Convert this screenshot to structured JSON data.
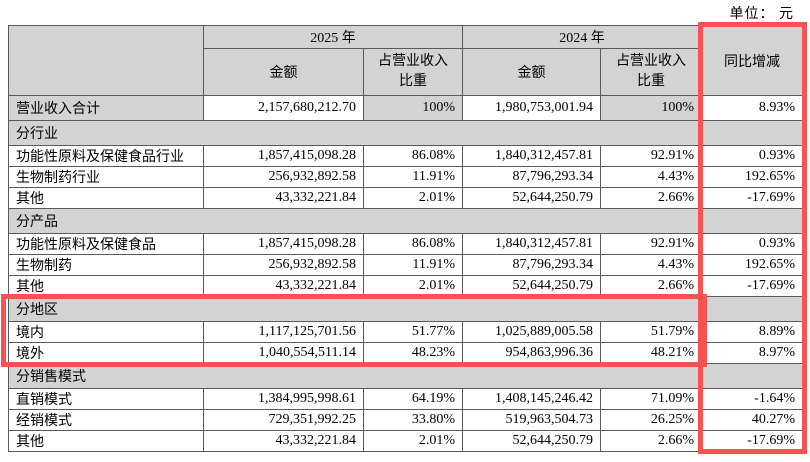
{
  "unit_label": "单位： 元",
  "highlights": {
    "color": "#f85252",
    "column_box_target": "同比增减",
    "region_box_target": "分地区"
  },
  "table": {
    "header": {
      "y2025": "2025 年",
      "y2024": "2024 年",
      "amount_2025": "金额",
      "pct_2025_line1": "占营业收入",
      "pct_2025_line2": "比重",
      "amount_2024": "金额",
      "pct_2024_line1": "占营业收入",
      "pct_2024_line2": "比重",
      "yoy": "同比增减"
    },
    "rows": [
      {
        "label": "营业收入合计",
        "a2025": "2,157,680,212.70",
        "p2025": "100%",
        "a2024": "1,980,753,001.94",
        "p2024": "100%",
        "yoy": "8.93%"
      },
      {
        "label": "分行业"
      },
      {
        "label": "功能性原料及保健食品行业",
        "a2025": "1,857,415,098.28",
        "p2025": "86.08%",
        "a2024": "1,840,312,457.81",
        "p2024": "92.91%",
        "yoy": "0.93%"
      },
      {
        "label": "生物制药行业",
        "a2025": "256,932,892.58",
        "p2025": "11.91%",
        "a2024": "87,796,293.34",
        "p2024": "4.43%",
        "yoy": "192.65%"
      },
      {
        "label": "其他",
        "a2025": "43,332,221.84",
        "p2025": "2.01%",
        "a2024": "52,644,250.79",
        "p2024": "2.66%",
        "yoy": "-17.69%"
      },
      {
        "label": "分产品"
      },
      {
        "label": "功能性原料及保健食品",
        "a2025": "1,857,415,098.28",
        "p2025": "86.08%",
        "a2024": "1,840,312,457.81",
        "p2024": "92.91%",
        "yoy": "0.93%"
      },
      {
        "label": "生物制药",
        "a2025": "256,932,892.58",
        "p2025": "11.91%",
        "a2024": "87,796,293.34",
        "p2024": "4.43%",
        "yoy": "192.65%"
      },
      {
        "label": "其他",
        "a2025": "43,332,221.84",
        "p2025": "2.01%",
        "a2024": "52,644,250.79",
        "p2024": "2.66%",
        "yoy": "-17.69%"
      },
      {
        "label": "分地区"
      },
      {
        "label": "境内",
        "a2025": "1,117,125,701.56",
        "p2025": "51.77%",
        "a2024": "1,025,889,005.58",
        "p2024": "51.79%",
        "yoy": "8.89%"
      },
      {
        "label": "境外",
        "a2025": "1,040,554,511.14",
        "p2025": "48.23%",
        "a2024": "954,863,996.36",
        "p2024": "48.21%",
        "yoy": "8.97%"
      },
      {
        "label": "分销售模式"
      },
      {
        "label": "直销模式",
        "a2025": "1,384,995,998.61",
        "p2025": "64.19%",
        "a2024": "1,408,145,246.42",
        "p2024": "71.09%",
        "yoy": "-1.64%"
      },
      {
        "label": "经销模式",
        "a2025": "729,351,992.25",
        "p2025": "33.80%",
        "a2024": "519,963,504.73",
        "p2024": "26.25%",
        "yoy": "40.27%"
      },
      {
        "label": "其他",
        "a2025": "43,332,221.84",
        "p2025": "2.01%",
        "a2024": "52,644,250.79",
        "p2024": "2.66%",
        "yoy": "-17.69%"
      }
    ]
  }
}
